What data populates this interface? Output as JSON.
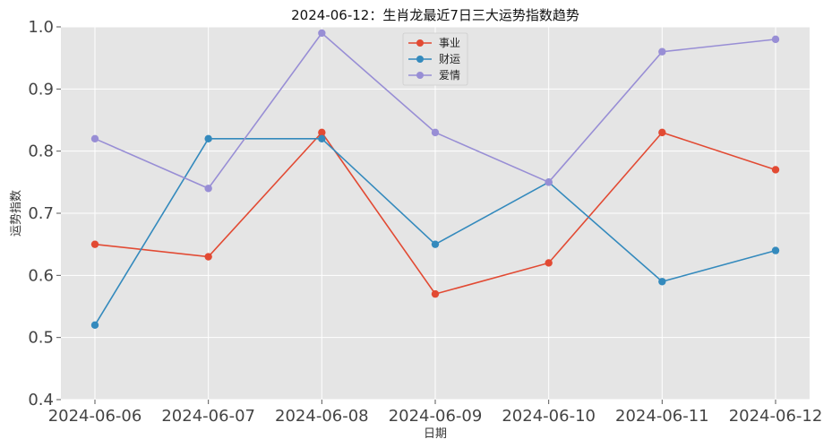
{
  "chart_data": {
    "type": "line",
    "title": "2024-06-12：生肖龙最近7日三大运势指数趋势",
    "xlabel": "日期",
    "ylabel": "运势指数",
    "categories": [
      "2024-06-06",
      "2024-06-07",
      "2024-06-08",
      "2024-06-09",
      "2024-06-10",
      "2024-06-11",
      "2024-06-12"
    ],
    "ylim": [
      0.4,
      1.0
    ],
    "yticks": [
      "0.4",
      "0.5",
      "0.6",
      "0.7",
      "0.8",
      "0.9",
      "1.0"
    ],
    "grid": true,
    "legend_position": "top-center",
    "series": [
      {
        "name": "事业",
        "color": "#e24a33",
        "values": [
          0.65,
          0.63,
          0.83,
          0.57,
          0.62,
          0.83,
          0.77
        ]
      },
      {
        "name": "财运",
        "color": "#348abd",
        "values": [
          0.52,
          0.82,
          0.82,
          0.65,
          0.75,
          0.59,
          0.64
        ]
      },
      {
        "name": "爱情",
        "color": "#988ed5",
        "values": [
          0.82,
          0.74,
          0.99,
          0.83,
          0.75,
          0.96,
          0.98
        ]
      }
    ]
  }
}
